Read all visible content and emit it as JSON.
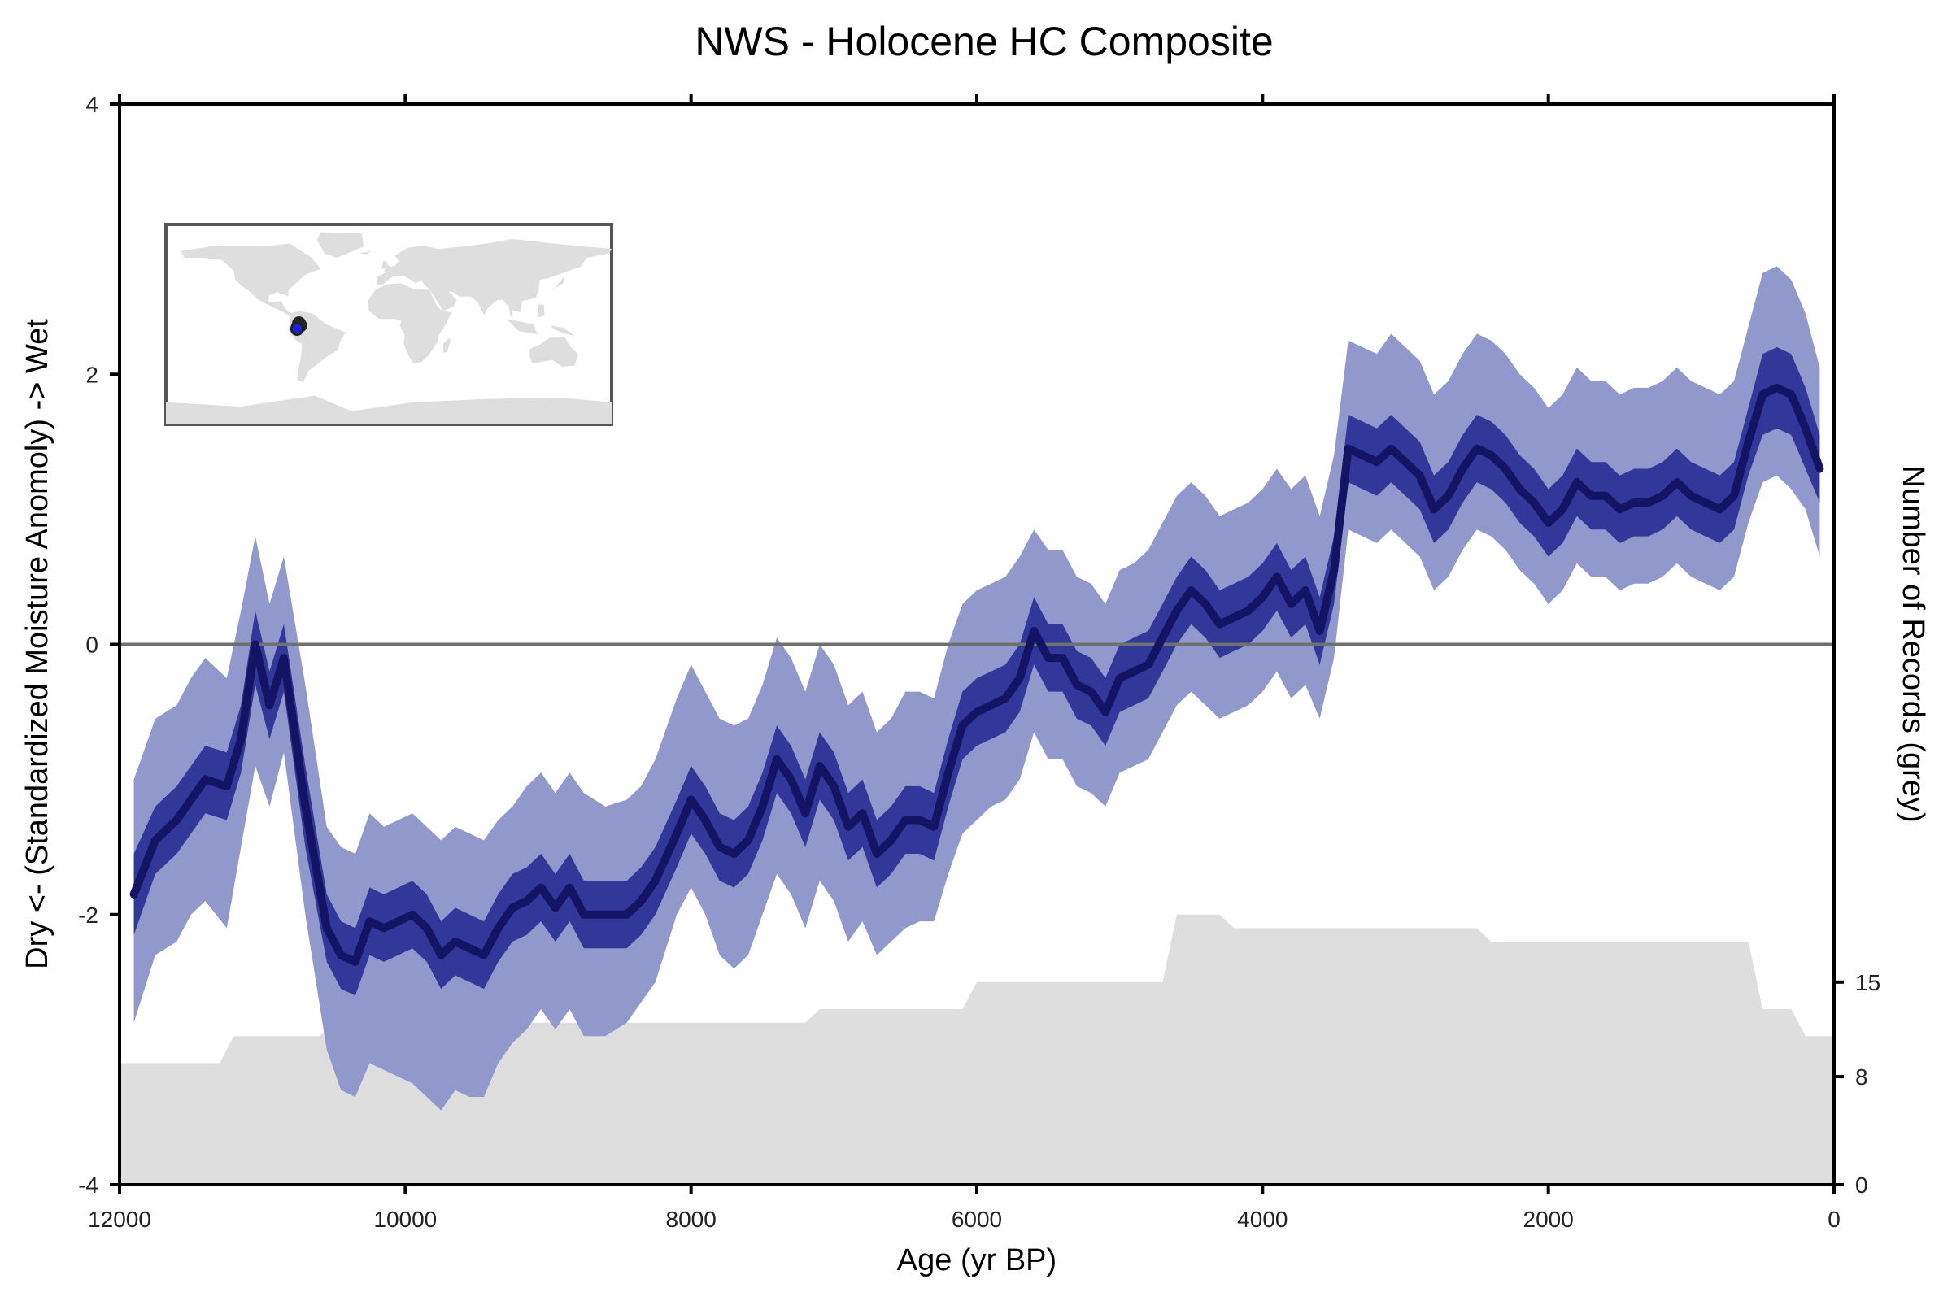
{
  "chart_data": {
    "type": "line",
    "title": "NWS - Holocene HC Composite",
    "xlabel": "Age (yr BP)",
    "ylabel": "Dry <- (Standardized Moisture Anomoly) -> Wet",
    "y2label": "Number of Records (grey)",
    "xlim": [
      12000,
      0
    ],
    "ylim": [
      -4,
      4
    ],
    "y2lim": [
      0,
      80
    ],
    "xticks": [
      12000,
      10000,
      8000,
      6000,
      4000,
      2000,
      0
    ],
    "yticks": [
      -4,
      -2,
      0,
      2,
      4
    ],
    "y2ticks": [
      0,
      8,
      15
    ],
    "grid": false,
    "zero_line": true,
    "colors": {
      "median": "#141464",
      "band_inner": "#32379a",
      "band_outer": "#9198cc",
      "records": "#dedede",
      "zero_line": "#707070",
      "map_land": "#dedede",
      "map_frame": "#555555",
      "site_fill": "#1a22e0"
    },
    "median": {
      "x": [
        11900,
        11750,
        11600,
        11500,
        11400,
        11250,
        11150,
        11050,
        10950,
        10850,
        10700,
        10550,
        10450,
        10350,
        10250,
        10150,
        10050,
        9950,
        9850,
        9750,
        9650,
        9550,
        9450,
        9350,
        9250,
        9150,
        9050,
        8950,
        8850,
        8750,
        8600,
        8450,
        8350,
        8250,
        8100,
        8000,
        7900,
        7800,
        7700,
        7600,
        7500,
        7400,
        7300,
        7200,
        7100,
        7000,
        6900,
        6800,
        6700,
        6600,
        6500,
        6400,
        6300,
        6200,
        6100,
        6000,
        5900,
        5800,
        5700,
        5600,
        5500,
        5400,
        5300,
        5200,
        5100,
        5000,
        4900,
        4800,
        4700,
        4600,
        4500,
        4400,
        4300,
        4200,
        4100,
        4000,
        3900,
        3800,
        3700,
        3600,
        3500,
        3400,
        3300,
        3200,
        3100,
        3000,
        2900,
        2800,
        2700,
        2600,
        2500,
        2400,
        2300,
        2200,
        2100,
        2000,
        1900,
        1800,
        1700,
        1600,
        1500,
        1400,
        1300,
        1200,
        1100,
        1000,
        900,
        800,
        700,
        600,
        500,
        400,
        300,
        200,
        100
      ],
      "y": [
        -1.85,
        -1.45,
        -1.3,
        -1.15,
        -1.0,
        -1.05,
        -0.7,
        0.0,
        -0.45,
        -0.1,
        -1.2,
        -2.1,
        -2.3,
        -2.35,
        -2.05,
        -2.1,
        -2.05,
        -2.0,
        -2.1,
        -2.3,
        -2.2,
        -2.25,
        -2.3,
        -2.1,
        -1.95,
        -1.9,
        -1.8,
        -1.95,
        -1.8,
        -2.0,
        -2.0,
        -2.0,
        -1.9,
        -1.75,
        -1.4,
        -1.15,
        -1.3,
        -1.5,
        -1.55,
        -1.45,
        -1.2,
        -0.85,
        -1.0,
        -1.25,
        -0.9,
        -1.05,
        -1.35,
        -1.25,
        -1.55,
        -1.45,
        -1.3,
        -1.3,
        -1.35,
        -0.95,
        -0.6,
        -0.5,
        -0.45,
        -0.4,
        -0.25,
        0.1,
        -0.1,
        -0.1,
        -0.3,
        -0.35,
        -0.5,
        -0.25,
        -0.2,
        -0.15,
        0.05,
        0.25,
        0.4,
        0.3,
        0.15,
        0.2,
        0.25,
        0.35,
        0.5,
        0.3,
        0.4,
        0.1,
        0.55,
        1.45,
        1.4,
        1.35,
        1.45,
        1.35,
        1.25,
        1.0,
        1.1,
        1.3,
        1.45,
        1.4,
        1.3,
        1.15,
        1.05,
        0.9,
        1.0,
        1.2,
        1.1,
        1.1,
        1.0,
        1.05,
        1.05,
        1.1,
        1.2,
        1.1,
        1.05,
        1.0,
        1.1,
        1.5,
        1.85,
        1.9,
        1.85,
        1.6,
        1.3
      ]
    },
    "band_inner": {
      "x": [
        11900,
        11750,
        11600,
        11500,
        11400,
        11250,
        11150,
        11050,
        10950,
        10850,
        10700,
        10550,
        10450,
        10350,
        10250,
        10150,
        10050,
        9950,
        9850,
        9750,
        9650,
        9550,
        9450,
        9350,
        9250,
        9150,
        9050,
        8950,
        8850,
        8750,
        8600,
        8450,
        8350,
        8250,
        8100,
        8000,
        7900,
        7800,
        7700,
        7600,
        7500,
        7400,
        7300,
        7200,
        7100,
        7000,
        6900,
        6800,
        6700,
        6600,
        6500,
        6400,
        6300,
        6200,
        6100,
        6000,
        5900,
        5800,
        5700,
        5600,
        5500,
        5400,
        5300,
        5200,
        5100,
        5000,
        4900,
        4800,
        4700,
        4600,
        4500,
        4400,
        4300,
        4200,
        4100,
        4000,
        3900,
        3800,
        3700,
        3600,
        3500,
        3400,
        3300,
        3200,
        3100,
        3000,
        2900,
        2800,
        2700,
        2600,
        2500,
        2400,
        2300,
        2200,
        2100,
        2000,
        1900,
        1800,
        1700,
        1600,
        1500,
        1400,
        1300,
        1200,
        1100,
        1000,
        900,
        800,
        700,
        600,
        500,
        400,
        300,
        200,
        100
      ],
      "low": [
        -2.15,
        -1.7,
        -1.55,
        -1.4,
        -1.25,
        -1.3,
        -0.95,
        -0.3,
        -0.7,
        -0.35,
        -1.5,
        -2.35,
        -2.55,
        -2.6,
        -2.3,
        -2.35,
        -2.3,
        -2.25,
        -2.35,
        -2.55,
        -2.45,
        -2.5,
        -2.55,
        -2.35,
        -2.2,
        -2.15,
        -2.05,
        -2.2,
        -2.05,
        -2.25,
        -2.25,
        -2.25,
        -2.15,
        -2.0,
        -1.65,
        -1.4,
        -1.55,
        -1.75,
        -1.8,
        -1.7,
        -1.45,
        -1.1,
        -1.25,
        -1.5,
        -1.15,
        -1.3,
        -1.6,
        -1.5,
        -1.8,
        -1.7,
        -1.55,
        -1.55,
        -1.6,
        -1.2,
        -0.85,
        -0.75,
        -0.7,
        -0.65,
        -0.5,
        -0.15,
        -0.35,
        -0.35,
        -0.55,
        -0.6,
        -0.75,
        -0.5,
        -0.45,
        -0.4,
        -0.2,
        0.0,
        0.15,
        0.05,
        -0.1,
        -0.05,
        0.0,
        0.1,
        0.25,
        0.05,
        0.15,
        -0.15,
        0.3,
        1.2,
        1.15,
        1.1,
        1.2,
        1.1,
        1.0,
        0.75,
        0.85,
        1.05,
        1.2,
        1.15,
        1.05,
        0.9,
        0.8,
        0.65,
        0.75,
        0.95,
        0.85,
        0.85,
        0.75,
        0.8,
        0.8,
        0.85,
        0.95,
        0.85,
        0.8,
        0.75,
        0.85,
        1.25,
        1.55,
        1.6,
        1.55,
        1.3,
        1.05
      ],
      "high": [
        -1.55,
        -1.2,
        -1.05,
        -0.9,
        -0.75,
        -0.8,
        -0.45,
        0.25,
        -0.2,
        0.15,
        -0.9,
        -1.85,
        -2.05,
        -2.1,
        -1.8,
        -1.85,
        -1.8,
        -1.75,
        -1.85,
        -2.05,
        -1.95,
        -2.0,
        -2.05,
        -1.85,
        -1.7,
        -1.65,
        -1.55,
        -1.7,
        -1.55,
        -1.75,
        -1.75,
        -1.75,
        -1.65,
        -1.5,
        -1.15,
        -0.9,
        -1.05,
        -1.25,
        -1.3,
        -1.2,
        -0.95,
        -0.6,
        -0.75,
        -1.0,
        -0.65,
        -0.8,
        -1.1,
        -1.0,
        -1.3,
        -1.2,
        -1.05,
        -1.05,
        -1.1,
        -0.7,
        -0.35,
        -0.25,
        -0.2,
        -0.15,
        0.0,
        0.35,
        0.15,
        0.15,
        -0.05,
        -0.1,
        -0.25,
        0.0,
        0.05,
        0.1,
        0.3,
        0.5,
        0.65,
        0.55,
        0.4,
        0.45,
        0.5,
        0.6,
        0.75,
        0.55,
        0.65,
        0.35,
        0.8,
        1.7,
        1.65,
        1.6,
        1.7,
        1.6,
        1.5,
        1.25,
        1.35,
        1.55,
        1.7,
        1.65,
        1.55,
        1.4,
        1.3,
        1.15,
        1.25,
        1.45,
        1.35,
        1.35,
        1.25,
        1.3,
        1.3,
        1.35,
        1.45,
        1.35,
        1.3,
        1.25,
        1.35,
        1.75,
        2.15,
        2.2,
        2.15,
        1.9,
        1.55
      ]
    },
    "band_outer": {
      "x": [
        11900,
        11750,
        11600,
        11500,
        11400,
        11250,
        11150,
        11050,
        10950,
        10850,
        10700,
        10550,
        10450,
        10350,
        10250,
        10150,
        10050,
        9950,
        9850,
        9750,
        9650,
        9550,
        9450,
        9350,
        9250,
        9150,
        9050,
        8950,
        8850,
        8750,
        8600,
        8450,
        8350,
        8250,
        8100,
        8000,
        7900,
        7800,
        7700,
        7600,
        7500,
        7400,
        7300,
        7200,
        7100,
        7000,
        6900,
        6800,
        6700,
        6600,
        6500,
        6400,
        6300,
        6200,
        6100,
        6000,
        5900,
        5800,
        5700,
        5600,
        5500,
        5400,
        5300,
        5200,
        5100,
        5000,
        4900,
        4800,
        4700,
        4600,
        4500,
        4400,
        4300,
        4200,
        4100,
        4000,
        3900,
        3800,
        3700,
        3600,
        3500,
        3400,
        3300,
        3200,
        3100,
        3000,
        2900,
        2800,
        2700,
        2600,
        2500,
        2400,
        2300,
        2200,
        2100,
        2000,
        1900,
        1800,
        1700,
        1600,
        1500,
        1400,
        1300,
        1200,
        1100,
        1000,
        900,
        800,
        700,
        600,
        500,
        400,
        300,
        200,
        100
      ],
      "low": [
        -2.8,
        -2.3,
        -2.2,
        -2.0,
        -1.9,
        -2.1,
        -1.5,
        -0.9,
        -1.2,
        -0.8,
        -2.0,
        -3.0,
        -3.3,
        -3.35,
        -3.1,
        -3.15,
        -3.2,
        -3.25,
        -3.35,
        -3.45,
        -3.3,
        -3.35,
        -3.35,
        -3.1,
        -2.95,
        -2.85,
        -2.7,
        -2.85,
        -2.7,
        -2.9,
        -2.9,
        -2.8,
        -2.65,
        -2.5,
        -2.0,
        -1.8,
        -2.0,
        -2.3,
        -2.4,
        -2.3,
        -2.0,
        -1.7,
        -1.85,
        -2.1,
        -1.75,
        -1.9,
        -2.2,
        -2.05,
        -2.3,
        -2.2,
        -2.1,
        -2.05,
        -2.05,
        -1.7,
        -1.4,
        -1.3,
        -1.2,
        -1.15,
        -1.0,
        -0.65,
        -0.85,
        -0.85,
        -1.05,
        -1.1,
        -1.2,
        -0.95,
        -0.9,
        -0.85,
        -0.65,
        -0.45,
        -0.35,
        -0.45,
        -0.55,
        -0.5,
        -0.45,
        -0.35,
        -0.2,
        -0.4,
        -0.3,
        -0.55,
        -0.1,
        0.85,
        0.8,
        0.75,
        0.85,
        0.75,
        0.65,
        0.4,
        0.5,
        0.7,
        0.85,
        0.8,
        0.7,
        0.55,
        0.45,
        0.3,
        0.4,
        0.6,
        0.5,
        0.5,
        0.4,
        0.45,
        0.45,
        0.5,
        0.6,
        0.5,
        0.45,
        0.4,
        0.5,
        0.9,
        1.2,
        1.25,
        1.15,
        1.0,
        0.65
      ],
      "high": [
        -1.0,
        -0.55,
        -0.45,
        -0.25,
        -0.1,
        -0.25,
        0.25,
        0.8,
        0.3,
        0.65,
        -0.3,
        -1.35,
        -1.5,
        -1.55,
        -1.25,
        -1.35,
        -1.3,
        -1.25,
        -1.35,
        -1.45,
        -1.35,
        -1.4,
        -1.45,
        -1.3,
        -1.2,
        -1.05,
        -0.95,
        -1.1,
        -0.95,
        -1.1,
        -1.2,
        -1.15,
        -1.05,
        -0.85,
        -0.4,
        -0.15,
        -0.35,
        -0.55,
        -0.6,
        -0.55,
        -0.3,
        0.05,
        -0.1,
        -0.35,
        0.0,
        -0.15,
        -0.45,
        -0.35,
        -0.65,
        -0.55,
        -0.35,
        -0.35,
        -0.4,
        0.0,
        0.3,
        0.4,
        0.45,
        0.5,
        0.65,
        0.85,
        0.7,
        0.7,
        0.5,
        0.45,
        0.3,
        0.55,
        0.6,
        0.7,
        0.9,
        1.1,
        1.2,
        1.1,
        0.95,
        1.0,
        1.05,
        1.15,
        1.3,
        1.15,
        1.25,
        0.95,
        1.4,
        2.25,
        2.2,
        2.15,
        2.3,
        2.2,
        2.1,
        1.85,
        1.95,
        2.15,
        2.3,
        2.25,
        2.15,
        2.0,
        1.9,
        1.75,
        1.85,
        2.05,
        1.95,
        1.95,
        1.85,
        1.9,
        1.9,
        1.95,
        2.05,
        1.95,
        1.9,
        1.85,
        1.95,
        2.35,
        2.75,
        2.8,
        2.7,
        2.45,
        2.05
      ]
    },
    "records": {
      "x": [
        12000,
        11300,
        11200,
        10600,
        10500,
        7200,
        7100,
        6100,
        6000,
        4700,
        4600,
        4300,
        4200,
        2500,
        2400,
        600,
        500,
        300,
        200,
        0
      ],
      "n": [
        9,
        9,
        11,
        11,
        12,
        12,
        13,
        13,
        15,
        15,
        20,
        20,
        19,
        19,
        18,
        18,
        13,
        13,
        11,
        11
      ]
    },
    "map_inset": {
      "sites": [
        {
          "lon": -72.5,
          "lat": 1.0
        },
        {
          "lon": -71.5,
          "lat": -1.0
        },
        {
          "lon": -73.5,
          "lat": -2.5
        },
        {
          "lon": -74.0,
          "lat": -4.0
        }
      ]
    }
  }
}
